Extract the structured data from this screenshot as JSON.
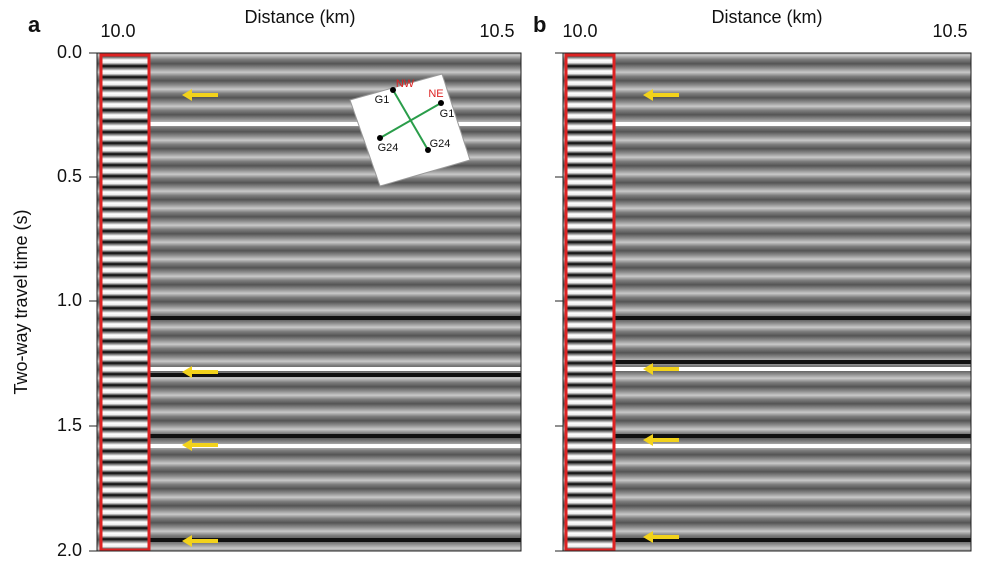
{
  "y_axis_label": "Two-way travel time (s)",
  "panels": [
    {
      "label": "a",
      "x_axis_label": "Distance (km)",
      "x_ticks": [
        "10.0",
        "10.5"
      ],
      "y_ticks": [
        "0.0",
        "0.5",
        "1.0",
        "1.5",
        "2.0"
      ]
    },
    {
      "label": "b",
      "x_axis_label": "Distance (km)",
      "x_ticks": [
        "10.0",
        "10.5"
      ]
    }
  ],
  "inset": {
    "directions": [
      "NW",
      "NE"
    ],
    "geophones": [
      "G1",
      "G1",
      "G24",
      "G24"
    ]
  }
}
